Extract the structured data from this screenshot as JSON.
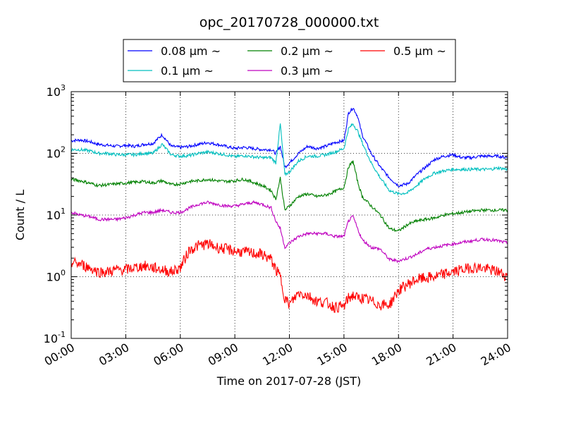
{
  "chart_data": {
    "type": "line",
    "title": "opc_20170728_000000.txt",
    "xlabel": "Time on 2017-07-28 (JST)",
    "ylabel": "Count / L",
    "y_scale": "log",
    "xlim": [
      "00:00",
      "24:00"
    ],
    "ylim": [
      0.1,
      1000
    ],
    "grid": true,
    "legend_position": "top",
    "x_tick_labels": [
      "00:00",
      "03:00",
      "06:00",
      "09:00",
      "12:00",
      "15:00",
      "18:00",
      "21:00",
      "24:00"
    ],
    "y_tick_labels": [
      {
        "base": "10",
        "exp": "-1"
      },
      {
        "base": "10",
        "exp": "0"
      },
      {
        "base": "10",
        "exp": "1"
      },
      {
        "base": "10",
        "exp": "2"
      },
      {
        "base": "10",
        "exp": "3"
      }
    ],
    "x": [
      "00:00",
      "00:30",
      "01:00",
      "01:30",
      "02:00",
      "02:30",
      "03:00",
      "03:30",
      "04:00",
      "04:30",
      "05:00",
      "05:30",
      "06:00",
      "06:30",
      "07:00",
      "07:30",
      "08:00",
      "08:30",
      "09:00",
      "09:30",
      "10:00",
      "10:30",
      "11:00",
      "11:15",
      "11:30",
      "11:45",
      "12:00",
      "12:30",
      "13:00",
      "13:30",
      "14:00",
      "14:30",
      "15:00",
      "15:15",
      "15:30",
      "15:45",
      "16:00",
      "16:30",
      "17:00",
      "17:30",
      "18:00",
      "18:30",
      "19:00",
      "19:30",
      "20:00",
      "20:30",
      "21:00",
      "21:30",
      "22:00",
      "22:30",
      "23:00",
      "23:30",
      "24:00"
    ],
    "series": [
      {
        "name": "0.08 μm ~",
        "color": "#0000ff",
        "values": [
          160,
          165,
          155,
          140,
          135,
          130,
          135,
          130,
          140,
          145,
          200,
          130,
          125,
          130,
          140,
          150,
          140,
          130,
          120,
          125,
          120,
          115,
          115,
          100,
          130,
          60,
          70,
          100,
          130,
          120,
          130,
          150,
          160,
          450,
          550,
          400,
          200,
          100,
          60,
          40,
          30,
          32,
          45,
          60,
          80,
          90,
          95,
          85,
          85,
          90,
          90,
          90,
          85
        ]
      },
      {
        "name": "0.1 μm ~",
        "color": "#00bfbf",
        "values": [
          115,
          115,
          110,
          100,
          100,
          95,
          95,
          95,
          100,
          100,
          140,
          95,
          90,
          92,
          100,
          105,
          100,
          95,
          88,
          92,
          88,
          85,
          85,
          70,
          300,
          45,
          50,
          75,
          90,
          90,
          95,
          105,
          120,
          250,
          300,
          230,
          150,
          70,
          40,
          25,
          22,
          23,
          30,
          40,
          48,
          52,
          55,
          55,
          55,
          55,
          55,
          58,
          55
        ]
      },
      {
        "name": "0.2 μm ~",
        "color": "#008000",
        "values": [
          38,
          36,
          33,
          30,
          31,
          32,
          33,
          34,
          35,
          33,
          36,
          31,
          32,
          35,
          36,
          38,
          36,
          35,
          36,
          38,
          34,
          30,
          25,
          18,
          40,
          12,
          14,
          20,
          22,
          20,
          21,
          24,
          28,
          60,
          75,
          35,
          20,
          14,
          10,
          6,
          5.5,
          7,
          8,
          8.5,
          9,
          10,
          10.5,
          11,
          11.5,
          12,
          12,
          12,
          12
        ]
      },
      {
        "name": "0.3 μm ~",
        "color": "#bf00bf",
        "values": [
          11,
          10,
          9.5,
          8.5,
          8.5,
          8.5,
          9,
          10,
          11,
          11,
          12,
          11,
          11,
          13,
          15,
          16,
          15,
          14,
          14,
          15,
          16,
          15,
          13,
          8,
          6,
          3,
          3.5,
          4.5,
          5,
          5,
          5,
          4.5,
          4.5,
          8,
          9.5,
          6,
          4,
          3,
          2.8,
          1.9,
          1.8,
          2,
          2.3,
          2.8,
          3,
          3.2,
          3.4,
          3.6,
          3.8,
          4,
          4,
          3.8,
          3.5
        ]
      },
      {
        "name": "0.5 μm ~",
        "color": "#ff0000",
        "values": [
          1.7,
          1.6,
          1.4,
          1.2,
          1.2,
          1.3,
          1.3,
          1.4,
          1.5,
          1.4,
          1.3,
          1.2,
          1.4,
          2.7,
          3.2,
          3.4,
          3.0,
          2.8,
          2.6,
          2.5,
          2.4,
          2.3,
          1.9,
          1.3,
          1.0,
          0.45,
          0.35,
          0.55,
          0.5,
          0.4,
          0.38,
          0.32,
          0.33,
          0.45,
          0.5,
          0.45,
          0.45,
          0.4,
          0.35,
          0.35,
          0.6,
          0.75,
          0.9,
          0.95,
          1.0,
          1.1,
          1.2,
          1.3,
          1.4,
          1.4,
          1.3,
          1.2,
          1.0
        ]
      }
    ]
  }
}
